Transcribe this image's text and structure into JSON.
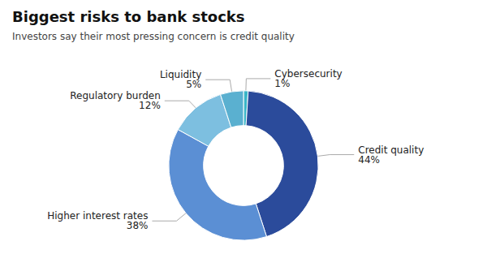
{
  "chart_data": {
    "type": "donut",
    "title": "Biggest risks to bank stocks",
    "subtitle": "Investors say their most pressing concern is credit quality",
    "categories": [
      "Cybersecurity",
      "Credit quality",
      "Higher interest rates",
      "Regulatory burden",
      "Liquidity"
    ],
    "values": [
      1,
      44,
      38,
      12,
      5
    ],
    "value_labels": [
      "1%",
      "44%",
      "38%",
      "12%",
      "5%"
    ],
    "data_labels": true,
    "colors": [
      "#3ab5c8",
      "#2b4b9b",
      "#5b8fd4",
      "#7dbfe0",
      "#5ab0d0"
    ]
  }
}
